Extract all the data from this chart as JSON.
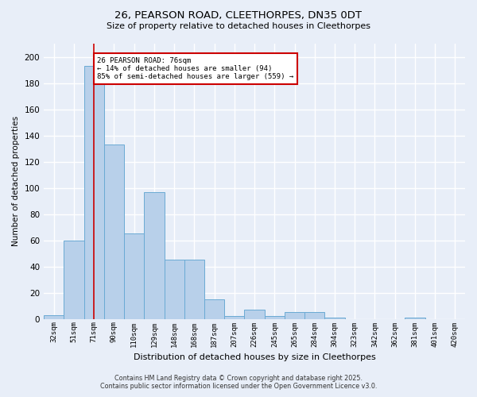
{
  "title_line1": "26, PEARSON ROAD, CLEETHORPES, DN35 0DT",
  "title_line2": "Size of property relative to detached houses in Cleethorpes",
  "xlabel": "Distribution of detached houses by size in Cleethorpes",
  "ylabel": "Number of detached properties",
  "categories": [
    "32sqm",
    "51sqm",
    "71sqm",
    "90sqm",
    "110sqm",
    "129sqm",
    "148sqm",
    "168sqm",
    "187sqm",
    "207sqm",
    "226sqm",
    "245sqm",
    "265sqm",
    "284sqm",
    "304sqm",
    "323sqm",
    "342sqm",
    "362sqm",
    "381sqm",
    "401sqm",
    "420sqm"
  ],
  "values": [
    3,
    60,
    193,
    133,
    65,
    97,
    45,
    45,
    15,
    2,
    7,
    2,
    5,
    5,
    1,
    0,
    0,
    0,
    1,
    0,
    0
  ],
  "bar_color": "#b8d0ea",
  "bar_edge_color": "#6aaad4",
  "background_color": "#e8eef8",
  "grid_color": "#ffffff",
  "vline_x": 2,
  "vline_color": "#cc0000",
  "annotation_text": "26 PEARSON ROAD: 76sqm\n← 14% of detached houses are smaller (94)\n85% of semi-detached houses are larger (559) →",
  "annotation_box_color": "#cc0000",
  "ylim": [
    0,
    210
  ],
  "yticks": [
    0,
    20,
    40,
    60,
    80,
    100,
    120,
    140,
    160,
    180,
    200
  ],
  "footer_line1": "Contains HM Land Registry data © Crown copyright and database right 2025.",
  "footer_line2": "Contains public sector information licensed under the Open Government Licence v3.0."
}
